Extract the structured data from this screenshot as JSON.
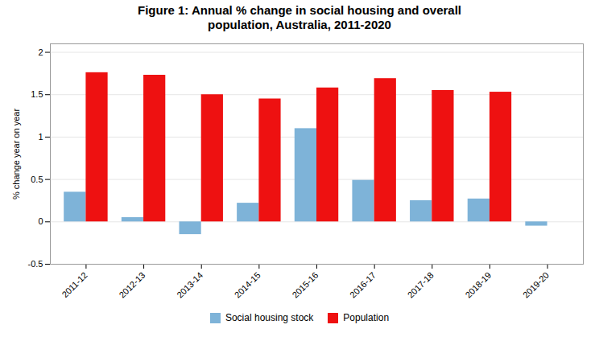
{
  "chart_data": {
    "type": "bar",
    "title": "Figure 1: Annual % change in social housing and overall\npopulation, Australia, 2011-2020",
    "categories": [
      "2011-12",
      "2012-13",
      "2013-14",
      "2014-15",
      "2015-16",
      "2016-17",
      "2017-18",
      "2018-19",
      "2019-20"
    ],
    "series": [
      {
        "name": "Social housing stock",
        "color": "#7EB3D8",
        "values": [
          0.35,
          0.05,
          -0.15,
          0.22,
          1.1,
          0.49,
          0.25,
          0.27,
          -0.05
        ]
      },
      {
        "name": "Population",
        "color": "#EE1111",
        "values": [
          1.76,
          1.73,
          1.5,
          1.45,
          1.58,
          1.69,
          1.55,
          1.53,
          null
        ]
      }
    ],
    "ylabel": "% change year on year",
    "ylim": [
      -0.5,
      2.1
    ],
    "yticks": [
      -0.5,
      0,
      0.5,
      1,
      1.5,
      2
    ],
    "grid": true,
    "legend": "bottom"
  }
}
